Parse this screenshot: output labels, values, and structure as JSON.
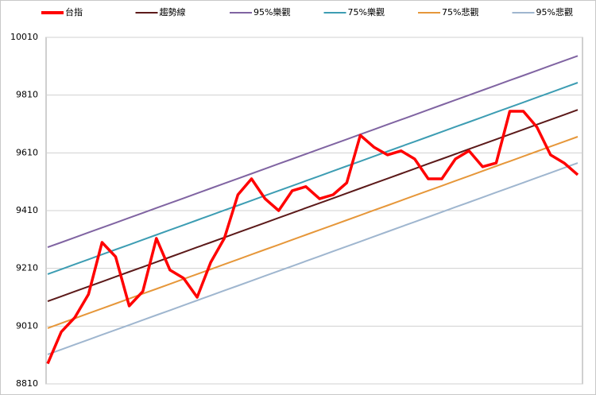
{
  "chart_data": {
    "type": "line",
    "categories": [
      null,
      null,
      null,
      null,
      null,
      null,
      null,
      null,
      null,
      null,
      null,
      null,
      null,
      null,
      null,
      null,
      null,
      null,
      null,
      null,
      null,
      null,
      null,
      null,
      null,
      null,
      null,
      null,
      null,
      null,
      null,
      null,
      null,
      null,
      null,
      null,
      null,
      null,
      null,
      null
    ],
    "series": [
      {
        "name": "台指",
        "color": "#ff0000",
        "width": 3.5,
        "values": [
          8880,
          8990,
          9040,
          9120,
          9300,
          9250,
          9080,
          9130,
          9314,
          9204,
          9176,
          9110,
          9231,
          9314,
          9465,
          9520,
          9451,
          9410,
          9479,
          9493,
          9451,
          9465,
          9506,
          9671,
          9630,
          9603,
          9617,
          9589,
          9520,
          9520,
          9589,
          9617,
          9562,
          9575,
          9754,
          9754,
          9699,
          9603,
          9575,
          9534
        ]
      },
      {
        "name": "趨勢線",
        "color": "#5c1a1a",
        "width": 2,
        "values": [
          9096,
          9113,
          9130,
          9147,
          9164,
          9181,
          9198,
          9215,
          9232,
          9249,
          9266,
          9283,
          9300,
          9317,
          9334,
          9351,
          9368,
          9385,
          9402,
          9419,
          9436,
          9453,
          9470,
          9487,
          9504,
          9521,
          9538,
          9555,
          9572,
          9589,
          9606,
          9623,
          9640,
          9657,
          9674,
          9691,
          9708,
          9725,
          9742,
          9759
        ]
      },
      {
        "name": "95%樂觀",
        "color": "#8064a2",
        "width": 2,
        "values": [
          9283,
          9300,
          9317,
          9334,
          9351,
          9368,
          9385,
          9402,
          9419,
          9436,
          9453,
          9470,
          9487,
          9504,
          9521,
          9538,
          9555,
          9572,
          9589,
          9606,
          9623,
          9640,
          9657,
          9674,
          9691,
          9708,
          9725,
          9742,
          9759,
          9776,
          9793,
          9810,
          9827,
          9844,
          9861,
          9878,
          9895,
          9912,
          9929,
          9946
        ]
      },
      {
        "name": "75%樂觀",
        "color": "#3d9db3",
        "width": 2,
        "values": [
          9190,
          9207,
          9224,
          9241,
          9258,
          9275,
          9292,
          9309,
          9326,
          9343,
          9360,
          9377,
          9394,
          9411,
          9428,
          9445,
          9462,
          9479,
          9496,
          9513,
          9530,
          9547,
          9564,
          9581,
          9598,
          9615,
          9632,
          9649,
          9666,
          9683,
          9700,
          9717,
          9734,
          9751,
          9768,
          9785,
          9802,
          9819,
          9836,
          9853
        ]
      },
      {
        "name": "75%悲觀",
        "color": "#e6973a",
        "width": 2,
        "values": [
          9003,
          9020,
          9037,
          9054,
          9071,
          9088,
          9105,
          9122,
          9139,
          9156,
          9173,
          9190,
          9207,
          9224,
          9241,
          9258,
          9275,
          9292,
          9309,
          9326,
          9343,
          9360,
          9377,
          9394,
          9411,
          9428,
          9445,
          9462,
          9479,
          9496,
          9513,
          9530,
          9547,
          9564,
          9581,
          9598,
          9615,
          9632,
          9649,
          9666
        ]
      },
      {
        "name": "95%悲觀",
        "color": "#9fb6cf",
        "width": 2,
        "values": [
          8912,
          8929,
          8946,
          8963,
          8980,
          8997,
          9014,
          9031,
          9048,
          9065,
          9082,
          9099,
          9116,
          9133,
          9150,
          9167,
          9184,
          9201,
          9218,
          9235,
          9252,
          9269,
          9286,
          9303,
          9320,
          9337,
          9354,
          9371,
          9388,
          9405,
          9422,
          9439,
          9456,
          9473,
          9490,
          9507,
          9524,
          9541,
          9558,
          9575
        ]
      }
    ],
    "ylim": [
      8810,
      10010
    ],
    "yticks": [
      8810,
      9010,
      9210,
      9410,
      9610,
      9810,
      10010
    ],
    "grid": true,
    "legend": "top"
  }
}
